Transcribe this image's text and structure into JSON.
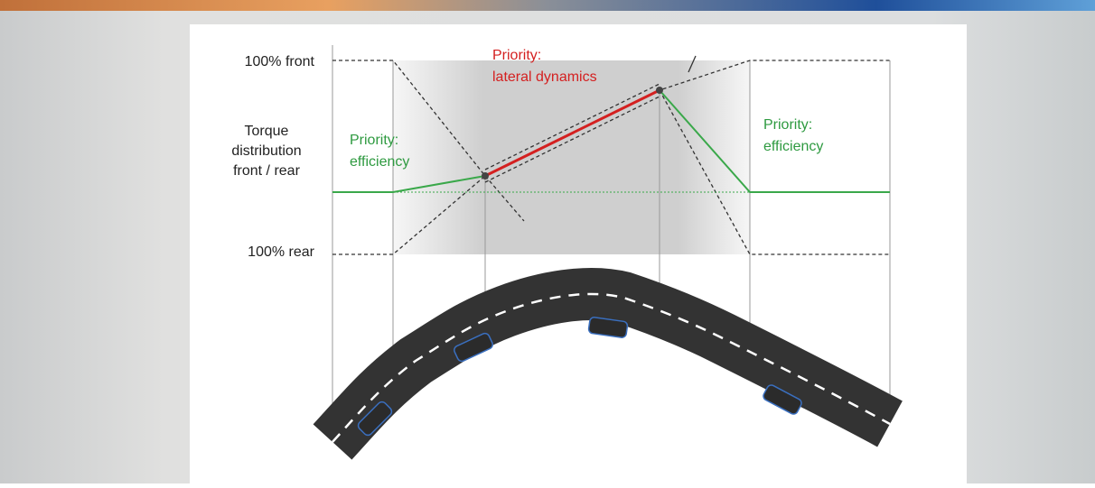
{
  "axis": {
    "top": "100% front",
    "label_lines": [
      "Torque",
      "distribution",
      "front / rear"
    ],
    "bottom": "100% rear"
  },
  "annotations": [
    {
      "lines": [
        "Priority:",
        "efficiency"
      ]
    },
    {
      "lines": [
        "Priority:",
        "lateral dynamics"
      ]
    },
    {
      "lines": [
        "Priority:",
        "efficiency"
      ]
    }
  ]
}
